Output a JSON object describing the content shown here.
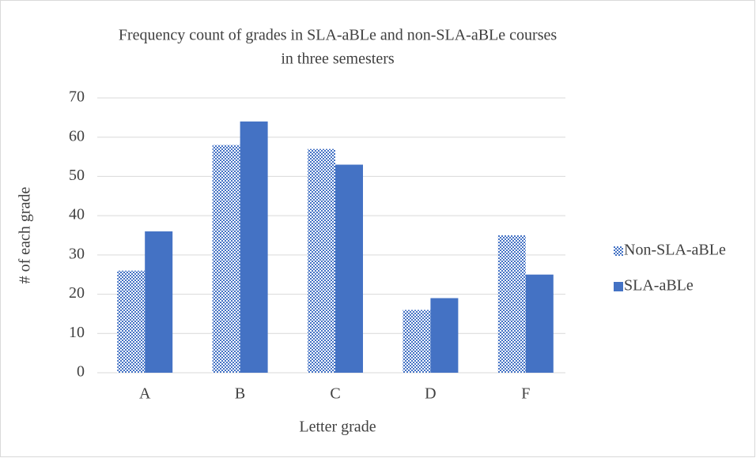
{
  "chart_data": {
    "type": "bar",
    "title": [
      "Frequency count of grades in SLA-aBLe and non-SLA-aBLe courses",
      "in three semesters"
    ],
    "x_label": "Letter grade",
    "y_label": "# of each grade",
    "categories": [
      "A",
      "B",
      "C",
      "D",
      "F"
    ],
    "series": [
      {
        "name": "Non-SLA-aBLe",
        "color": "#4472c4",
        "pattern": "dots",
        "values": [
          26,
          58,
          57,
          16,
          35
        ]
      },
      {
        "name": "SLA-aBLe",
        "color": "#4472c4",
        "values": [
          36,
          64,
          53,
          19,
          25
        ]
      }
    ],
    "ylim": [
      0,
      70
    ],
    "yticks": [
      0,
      10,
      20,
      30,
      40,
      50,
      60,
      70
    ],
    "grid": true,
    "legend": "right"
  }
}
